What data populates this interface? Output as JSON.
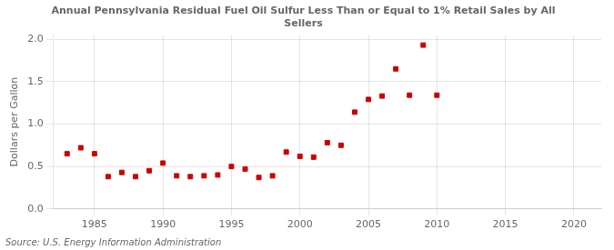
{
  "chart_data": {
    "type": "scatter",
    "title": "Annual Pennsylvania Residual Fuel Oil Sulfur Less Than or Equal to 1% Retail Sales by All\nSellers",
    "ylabel": "Dollars per Gallon",
    "annotations": [
      "Source: U.S. Energy Information Administration"
    ],
    "x": [
      1983,
      1984,
      1985,
      1986,
      1987,
      1988,
      1989,
      1990,
      1991,
      1992,
      1993,
      1994,
      1995,
      1996,
      1997,
      1998,
      1999,
      2000,
      2001,
      2002,
      2003,
      2004,
      2005,
      2006,
      2007,
      2008,
      2009,
      2010
    ],
    "values": [
      0.65,
      0.72,
      0.65,
      0.38,
      0.43,
      0.38,
      0.45,
      0.54,
      0.39,
      0.38,
      0.39,
      0.4,
      0.5,
      0.47,
      0.37,
      0.39,
      0.67,
      0.62,
      0.61,
      0.78,
      0.75,
      1.14,
      1.29,
      1.33,
      1.65,
      1.34,
      1.93,
      1.34
    ],
    "color": "#cc0000",
    "marker": "square",
    "xlim": [
      1982,
      2022
    ],
    "xticks": [
      1985,
      1990,
      1995,
      2000,
      2005,
      2010,
      2015,
      2020
    ],
    "ylim": [
      0.0,
      2.05
    ],
    "yticks": [
      {
        "value": 0.0,
        "label": "0.0"
      },
      {
        "value": 0.5,
        "label": "0.5"
      },
      {
        "value": 1.0,
        "label": "1.0"
      },
      {
        "value": 1.5,
        "label": "1.5"
      },
      {
        "value": 2.0,
        "label": "2.0"
      }
    ],
    "grid": true
  }
}
